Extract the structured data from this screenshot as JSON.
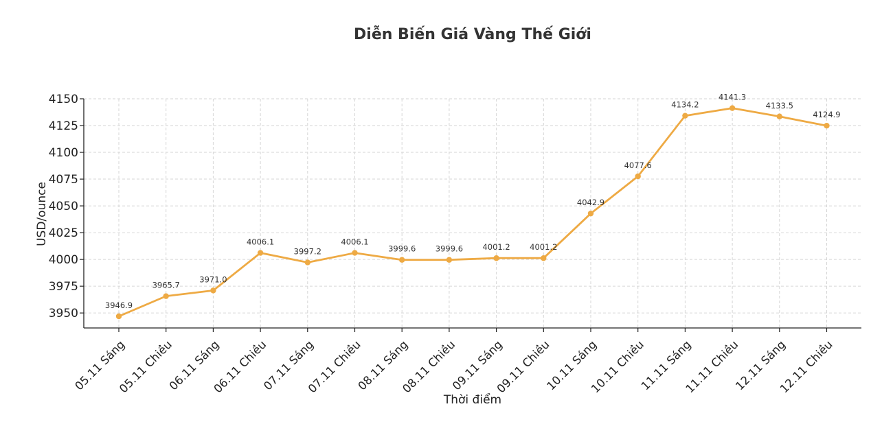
{
  "chart_data": {
    "type": "line",
    "title": "Diễn Biến Giá Vàng Thế Giới",
    "xlabel": "Thời điểm",
    "ylabel": "USD/ounce",
    "categories": [
      "05.11 Sáng",
      "05.11 Chiều",
      "06.11 Sáng",
      "06.11 Chiều",
      "07.11 Sáng",
      "07.11 Chiều",
      "08.11 Sáng",
      "08.11 Chiều",
      "09.11 Sáng",
      "09.11 Chiều",
      "10.11 Sáng",
      "10.11 Chiều",
      "11.11 Sáng",
      "11.11 Chiều",
      "12.11 Sáng",
      "12.11 Chiều"
    ],
    "values": [
      3946.9,
      3965.7,
      3971.0,
      4006.1,
      3997.2,
      4006.1,
      3999.6,
      3999.6,
      4001.2,
      4001.2,
      4042.9,
      4077.6,
      4134.2,
      4141.3,
      4133.5,
      4124.9
    ],
    "data_labels": [
      "3946.9",
      "3965.7",
      "3971.0",
      "4006.1",
      "3997.2",
      "4006.1",
      "3999.6",
      "3999.6",
      "4001.2",
      "4001.2",
      "4042.9",
      "4077.6",
      "4134.2",
      "4141.3",
      "4133.5",
      "4124.9"
    ],
    "yticks": [
      3950,
      3975,
      4000,
      4025,
      4050,
      4075,
      4100,
      4125,
      4150
    ],
    "ylim": [
      3936,
      4150
    ],
    "grid": true,
    "color": "#eeaa44"
  }
}
